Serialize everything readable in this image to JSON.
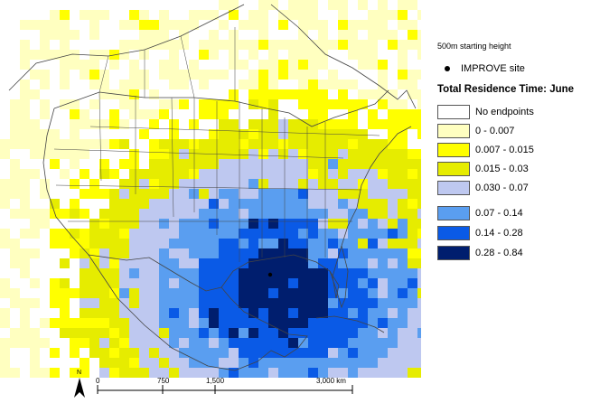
{
  "legend": {
    "height_label": "500m starting height",
    "site_label": "IMPROVE site",
    "title": "Total Residence Time: June",
    "classes": [
      {
        "label": "No endpoints",
        "color": "#ffffff"
      },
      {
        "label": "0 - 0.007",
        "color": "#ffffc0"
      },
      {
        "label": "0.007 - 0.015",
        "color": "#ffff00"
      },
      {
        "label": "0.015 - 0.03",
        "color": "#e6ec00"
      },
      {
        "label": "0.030 - 0.07",
        "color": "#bec8f0"
      },
      {
        "label": "0.07 - 0.14",
        "color": "#5a9ef0"
      },
      {
        "label": "0.14 - 0.28",
        "color": "#0a5ae6"
      },
      {
        "label": "0.28 - 0.84",
        "color": "#001e6e"
      }
    ]
  },
  "scalebar": {
    "ticks": [
      "0",
      "750",
      "1,500",
      "3,000 km"
    ]
  },
  "north_arrow": {
    "label": "N"
  },
  "colors": {
    "boundary": "#444444",
    "water": "#ffffff"
  }
}
